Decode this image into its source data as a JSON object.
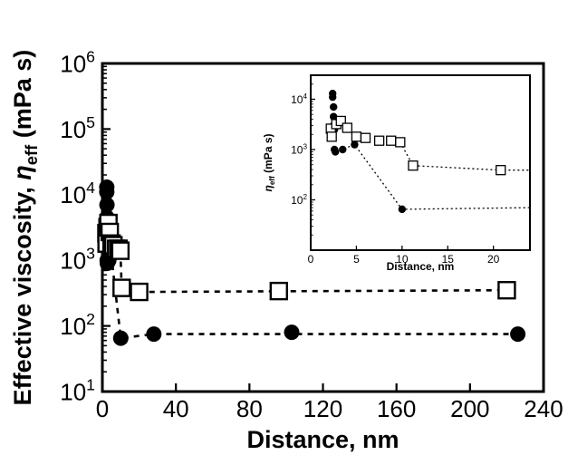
{
  "chart_data": [
    {
      "type": "scatter",
      "title": "",
      "xlabel": "Distance, nm",
      "ylabel_main": "Effective viscosity, ",
      "ylabel_symbol": "η",
      "ylabel_sub": "eff",
      "ylabel_unit": " (mPa s)",
      "xlim": [
        0,
        240
      ],
      "ylim": [
        10,
        1000000
      ],
      "yscale": "log",
      "xticks": [
        0,
        40,
        80,
        120,
        160,
        200,
        240
      ],
      "yticks": [
        {
          "value": 10,
          "base": "10",
          "exp": "1"
        },
        {
          "value": 100,
          "base": "10",
          "exp": "2"
        },
        {
          "value": 1000,
          "base": "10",
          "exp": "3"
        },
        {
          "value": 10000,
          "base": "10",
          "exp": "4"
        },
        {
          "value": 100000,
          "base": "10",
          "exp": "5"
        },
        {
          "value": 1000000,
          "base": "10",
          "exp": "6"
        }
      ],
      "grid": false,
      "series": [
        {
          "marker": "filled-circle",
          "color": "#000000",
          "points": [
            {
              "x": 2.4,
              "y": 13000
            },
            {
              "x": 2.4,
              "y": 11000
            },
            {
              "x": 2.5,
              "y": 7000
            },
            {
              "x": 2.5,
              "y": 4500
            },
            {
              "x": 2.5,
              "y": 3000
            },
            {
              "x": 2.6,
              "y": 2500
            },
            {
              "x": 2.6,
              "y": 1000
            },
            {
              "x": 2.7,
              "y": 900
            },
            {
              "x": 3.5,
              "y": 1000
            },
            {
              "x": 4.8,
              "y": 1250
            },
            {
              "x": 10,
              "y": 65
            },
            {
              "x": 28,
              "y": 75
            },
            {
              "x": 103,
              "y": 80
            },
            {
              "x": 226,
              "y": 75
            }
          ],
          "trend": [
            {
              "x": 4.8,
              "y": 1250
            },
            {
              "x": 10,
              "y": 65
            },
            {
              "x": 28,
              "y": 75
            },
            {
              "x": 226,
              "y": 75
            }
          ]
        },
        {
          "marker": "open-square",
          "color": "#000000",
          "points": [
            {
              "x": 2.2,
              "y": 2600
            },
            {
              "x": 2.3,
              "y": 1800
            },
            {
              "x": 2.8,
              "y": 3200
            },
            {
              "x": 3.3,
              "y": 3700
            },
            {
              "x": 4.0,
              "y": 2700
            },
            {
              "x": 5.0,
              "y": 1800
            },
            {
              "x": 6.0,
              "y": 1700
            },
            {
              "x": 7.5,
              "y": 1500
            },
            {
              "x": 8.8,
              "y": 1500
            },
            {
              "x": 9.8,
              "y": 1400
            },
            {
              "x": 10.5,
              "y": 380
            },
            {
              "x": 20,
              "y": 330
            },
            {
              "x": 96,
              "y": 340
            },
            {
              "x": 220,
              "y": 350
            }
          ],
          "trend": [
            {
              "x": 9.8,
              "y": 1400
            },
            {
              "x": 10.5,
              "y": 380
            },
            {
              "x": 20,
              "y": 330
            },
            {
              "x": 220,
              "y": 350
            }
          ]
        }
      ]
    },
    {
      "type": "scatter",
      "title": "",
      "xlabel": "Distance, nm",
      "ylabel_symbol": "η",
      "ylabel_sub": "eff",
      "ylabel_unit": " (mPa s)",
      "xlim": [
        0,
        24
      ],
      "ylim": [
        10,
        30000
      ],
      "yscale": "log",
      "xticks": [
        0,
        5,
        10,
        15,
        20
      ],
      "yticks": [
        {
          "value": 100,
          "base": "10",
          "exp": "2"
        },
        {
          "value": 1000,
          "base": "10",
          "exp": "3"
        },
        {
          "value": 10000,
          "base": "10",
          "exp": "4"
        }
      ],
      "grid": false,
      "series": [
        {
          "marker": "filled-circle",
          "color": "#000000",
          "points": [
            {
              "x": 2.4,
              "y": 13000
            },
            {
              "x": 2.4,
              "y": 11000
            },
            {
              "x": 2.5,
              "y": 7000
            },
            {
              "x": 2.5,
              "y": 4500
            },
            {
              "x": 2.5,
              "y": 3000
            },
            {
              "x": 2.6,
              "y": 2500
            },
            {
              "x": 2.6,
              "y": 1000
            },
            {
              "x": 2.7,
              "y": 900
            },
            {
              "x": 3.5,
              "y": 1000
            },
            {
              "x": 4.8,
              "y": 1250
            },
            {
              "x": 10,
              "y": 65
            }
          ],
          "trend": [
            {
              "x": 2.7,
              "y": 900
            },
            {
              "x": 4.8,
              "y": 1250
            },
            {
              "x": 10,
              "y": 65
            },
            {
              "x": 24,
              "y": 70
            }
          ]
        },
        {
          "marker": "open-square",
          "color": "#000000",
          "points": [
            {
              "x": 2.2,
              "y": 2600
            },
            {
              "x": 2.3,
              "y": 1800
            },
            {
              "x": 2.8,
              "y": 3200
            },
            {
              "x": 3.3,
              "y": 3700
            },
            {
              "x": 4.0,
              "y": 2700
            },
            {
              "x": 5.0,
              "y": 1800
            },
            {
              "x": 6.0,
              "y": 1700
            },
            {
              "x": 7.5,
              "y": 1500
            },
            {
              "x": 8.8,
              "y": 1500
            },
            {
              "x": 9.8,
              "y": 1400
            },
            {
              "x": 11.2,
              "y": 480
            },
            {
              "x": 20.8,
              "y": 390
            }
          ],
          "trend": [
            {
              "x": 9.8,
              "y": 1400
            },
            {
              "x": 11.2,
              "y": 480
            },
            {
              "x": 20.8,
              "y": 390
            },
            {
              "x": 24,
              "y": 390
            }
          ]
        }
      ]
    }
  ]
}
